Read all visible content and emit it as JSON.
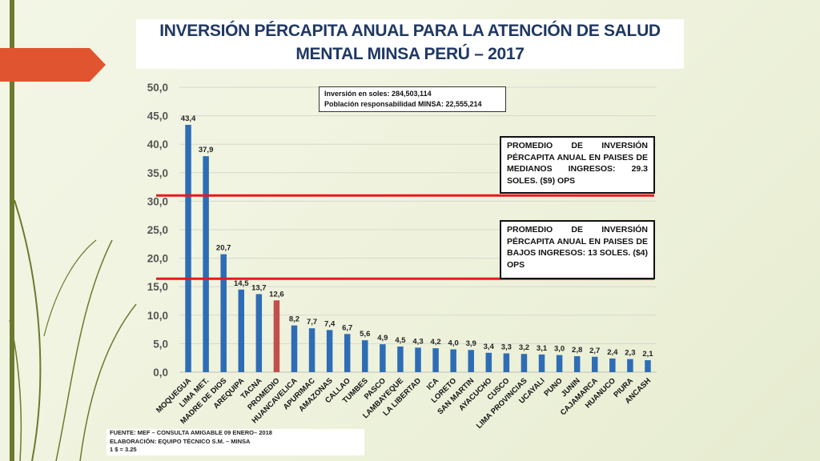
{
  "colors": {
    "bar": "#2e6db5",
    "highlight_bar": "#c0504d",
    "reference_line": "#e31b1b",
    "title": "#1f3864",
    "deco_arrow": "#e0552f",
    "deco_stem": "#6b7a2e"
  },
  "title": {
    "line1": "INVERSIÓN PÉRCAPITA ANUAL  PARA LA ATENCIÓN DE SALUD",
    "line2": "MENTAL  MINSA PERÚ – 2017"
  },
  "info_box": {
    "line1": "Inversión en soles: 284,503,114",
    "line2": "Población responsabilidad MINSA: 22,555,214"
  },
  "notes": [
    {
      "text": "PROMEDIO DE INVERSIÓN PÉRCAPITA ANUAL EN PAISES DE MEDIANOS INGRESOS: 29.3 SOLES. ($9) OPS",
      "line_value": 31.0
    },
    {
      "text": "PROMEDIO DE INVERSIÓN PÉRCAPITA ANUAL EN PAISES DE BAJOS INGRESOS: 13 SOLES. ($4) OPS",
      "line_value": 16.4
    }
  ],
  "footer": {
    "line1": "FUENTE: MEF – CONSULTA AMIGABLE 09 ENERO– 2018",
    "line2": "ELABORACIÓN: EQUIPO TÉCNICO S.M. – MINSA",
    "line3": "1 $ = 3.25"
  },
  "chart_data": {
    "type": "bar",
    "ylim": [
      0,
      50
    ],
    "ytick_step": 5,
    "ytick_labels": [
      "0,0",
      "5,0",
      "10,0",
      "15,0",
      "20,0",
      "25,0",
      "30,0",
      "35,0",
      "40,0",
      "45,0",
      "50,0"
    ],
    "grid": true,
    "highlight_category": "PROMEDIO",
    "categories": [
      "MOQUEGUA",
      "LIMA MET.",
      "MADRE DE DIOS",
      "AREQUIPA",
      "TACNA",
      "PROMEDIO",
      "HUANCAVELICA",
      "APURIMAC",
      "AMAZONAS",
      "CALLAO",
      "TUMBES",
      "PASCO",
      "LAMBAYEQUE",
      "LA LIBERTAD",
      "ICA",
      "LORETO",
      "SAN MARTIN",
      "AYACUCHO",
      "CUSCO",
      "LIMA PROVINCIAS",
      "UCAYALI",
      "PUNO",
      "JUNIN",
      "CAJAMARCA",
      "HUANUCO",
      "PIURA",
      "ANCASH"
    ],
    "values": [
      43.4,
      37.9,
      20.7,
      14.5,
      13.7,
      12.6,
      8.2,
      7.7,
      7.4,
      6.7,
      5.6,
      4.9,
      4.5,
      4.3,
      4.2,
      4.0,
      3.9,
      3.4,
      3.3,
      3.2,
      3.1,
      3.0,
      2.8,
      2.7,
      2.4,
      2.3,
      2.1
    ],
    "value_labels": [
      "43,4",
      "37,9",
      "20,7",
      "14,5",
      "13,7",
      "12,6",
      "8,2",
      "7,7",
      "7,4",
      "6,7",
      "5,6",
      "4,9",
      "4,5",
      "4,3",
      "4,2",
      "4,0",
      "3,9",
      "3,4",
      "3,3",
      "3,2",
      "3,1",
      "3,0",
      "2,8",
      "2,7",
      "2,4",
      "2,3",
      "2,1"
    ]
  }
}
